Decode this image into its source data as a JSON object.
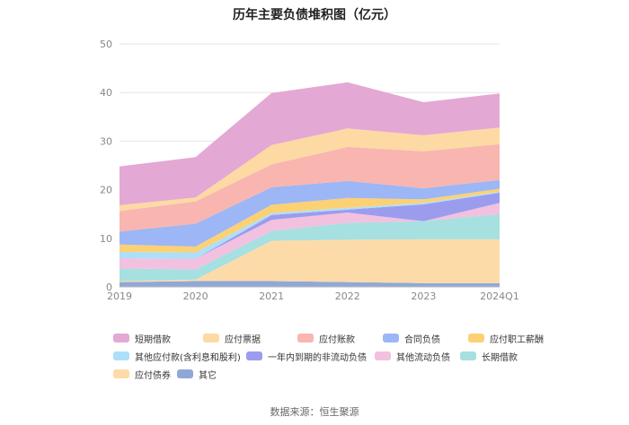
{
  "chart_data": {
    "type": "area",
    "stacked": true,
    "title": "历年主要负债堆积图（亿元）",
    "categories": [
      "2019",
      "2020",
      "2021",
      "2022",
      "2023",
      "2024Q1"
    ],
    "ylim": [
      0,
      50
    ],
    "yticks": [
      "0",
      "10",
      "20",
      "30",
      "40",
      "50"
    ],
    "series": [
      {
        "name": "其它",
        "color": "#8fa8d8",
        "values": [
          1.0,
          1.2,
          1.2,
          1.0,
          0.8,
          0.8
        ]
      },
      {
        "name": "应付债券",
        "color": "#fddba8",
        "values": [
          0.2,
          0.3,
          8.3,
          8.7,
          9.0,
          9.0
        ]
      },
      {
        "name": "长期借款",
        "color": "#a6e0e0",
        "values": [
          2.6,
          2.1,
          2.0,
          3.5,
          3.7,
          5.2
        ]
      },
      {
        "name": "其他流动负债",
        "color": "#f2c1df",
        "values": [
          2.1,
          2.2,
          2.3,
          2.1,
          0.0,
          2.3
        ]
      },
      {
        "name": "一年内到期的非流动负债",
        "color": "#9c9cef",
        "values": [
          0.0,
          0.0,
          1.0,
          0.6,
          3.5,
          2.1
        ]
      },
      {
        "name": "其他应付款(含利息和股利)",
        "color": "#aedff8",
        "values": [
          1.3,
          1.3,
          0.4,
          0.4,
          0.3,
          0.2
        ]
      },
      {
        "name": "应付职工薪酬",
        "color": "#fcd174",
        "values": [
          1.5,
          1.2,
          1.7,
          2.0,
          0.7,
          0.6
        ]
      },
      {
        "name": "合同负债",
        "color": "#9cb6f6",
        "values": [
          2.7,
          4.7,
          3.6,
          3.5,
          2.3,
          1.8
        ]
      },
      {
        "name": "应付账款",
        "color": "#f9b5b0",
        "values": [
          4.2,
          4.6,
          4.7,
          7.0,
          7.6,
          7.4
        ]
      },
      {
        "name": "应付票据",
        "color": "#fdd9a4",
        "values": [
          1.2,
          0.8,
          4.0,
          3.8,
          3.3,
          3.4
        ]
      },
      {
        "name": "短期借款",
        "color": "#e4a8d4",
        "values": [
          8.0,
          8.3,
          10.7,
          9.5,
          6.8,
          7.0
        ]
      }
    ],
    "legend_order": [
      "短期借款",
      "应付票据",
      "应付账款",
      "合同负债",
      "应付职工薪酬",
      "其他应付款(含利息和股利)",
      "一年内到期的非流动负债",
      "其他流动负债",
      "长期借款",
      "应付债券",
      "其它"
    ],
    "legend_position": "bottom"
  },
  "source": "数据来源：恒生聚源"
}
